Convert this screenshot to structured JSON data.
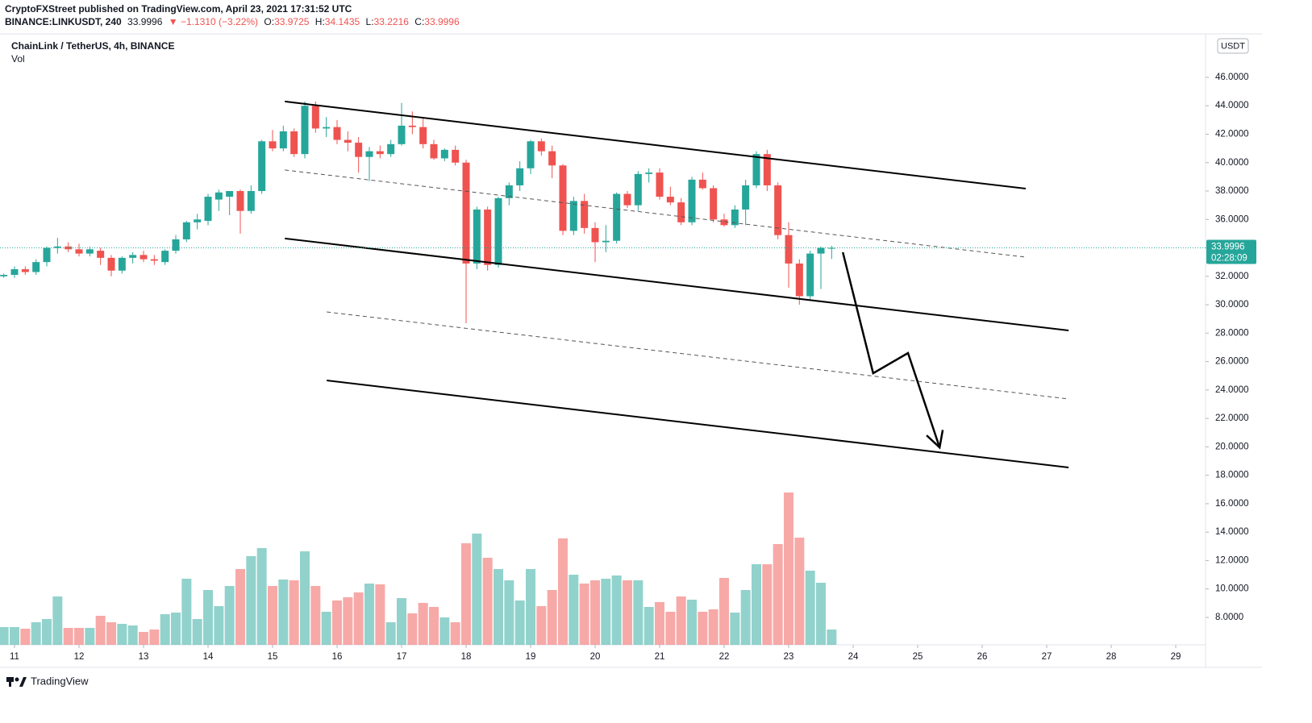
{
  "publisher": "CryptoFXStreet published on TradingView.com, April 23, 2021 17:31:52 UTC",
  "symbol": "BINANCE:LINKUSDT, 240",
  "change": "▼ −1.1310 (−3.22%)",
  "ohlc_labels": [
    "O:",
    "H:",
    "L:",
    "C:"
  ],
  "footer": "TradingView",
  "chart_data": {
    "type": "candlestick",
    "title": "ChainLink / TetherUS, 4h, BINANCE",
    "volume_label": "Vol",
    "currency": "USDT",
    "countdown": "02:28:09",
    "up_color": "#26a69a",
    "down_color": "#ef5350",
    "xlim": [
      10.775,
      29.4625
    ],
    "xticks": [
      11,
      12,
      13,
      14,
      15,
      16,
      17,
      18,
      19,
      20,
      21,
      22,
      23,
      24,
      25,
      26,
      27,
      28,
      29
    ],
    "ylim": [
      6.07,
      49.06
    ],
    "yticks": [
      {
        "value": 8,
        "label": "8.0000"
      },
      {
        "value": 10,
        "label": "10.0000"
      },
      {
        "value": 12,
        "label": "12.0000"
      },
      {
        "value": 14,
        "label": "14.0000"
      },
      {
        "value": 16,
        "label": "16.0000"
      },
      {
        "value": 18,
        "label": "18.0000"
      },
      {
        "value": 20,
        "label": "20.0000"
      },
      {
        "value": 22,
        "label": "22.0000"
      },
      {
        "value": 24,
        "label": "24.0000"
      },
      {
        "value": 26,
        "label": "26.0000"
      },
      {
        "value": 28,
        "label": "28.0000"
      },
      {
        "value": 30,
        "label": "30.0000"
      },
      {
        "value": 32,
        "label": "32.0000"
      },
      {
        "value": 34,
        "label": "34.0000"
      },
      {
        "value": 36,
        "label": "36.0000"
      },
      {
        "value": 38,
        "label": "38.0000"
      },
      {
        "value": 40,
        "label": "40.0000"
      },
      {
        "value": 42,
        "label": "42.0000"
      },
      {
        "value": 44,
        "label": "44.0000"
      },
      {
        "value": 46,
        "label": "46.0000"
      }
    ],
    "volume_ylim": [
      0,
      758
    ],
    "grid": false,
    "x": [
      10.8333,
      11,
      11.1667,
      11.3333,
      11.5,
      11.6667,
      11.8333,
      12,
      12.1667,
      12.3333,
      12.5,
      12.6667,
      12.8333,
      13,
      13.1667,
      13.3333,
      13.5,
      13.6667,
      13.8333,
      14,
      14.1667,
      14.3333,
      14.5,
      14.6667,
      14.8333,
      15,
      15.1667,
      15.3333,
      15.5,
      15.6667,
      15.8333,
      16,
      16.1667,
      16.3333,
      16.5,
      16.6667,
      16.8333,
      17,
      17.1667,
      17.3333,
      17.5,
      17.6667,
      17.8333,
      18,
      18.1667,
      18.3333,
      18.5,
      18.6667,
      18.8333,
      19,
      19.1667,
      19.3333,
      19.5,
      19.6667,
      19.8333,
      20,
      20.1667,
      20.3333,
      20.5,
      20.6667,
      20.8333,
      21,
      21.1667,
      21.3333,
      21.5,
      21.6667,
      21.8333,
      22,
      22.1667,
      22.3333,
      22.5,
      22.6667,
      22.8333,
      23,
      23.1667,
      23.3333,
      23.5,
      23.6667
    ],
    "open": [
      32.0,
      32.1,
      32.5,
      32.3,
      33.0,
      34.0,
      34.1,
      33.9,
      33.6,
      33.8,
      33.3,
      32.4,
      33.3,
      33.5,
      33.2,
      33.0,
      33.8,
      34.6,
      35.8,
      35.9,
      37.4,
      37.6,
      38.0,
      36.6,
      38.0,
      41.5,
      41.0,
      42.2,
      40.6,
      44.0,
      42.4,
      42.5,
      41.6,
      41.4,
      40.4,
      40.8,
      40.6,
      41.3,
      42.6,
      42.5,
      41.3,
      40.3,
      40.9,
      40.0,
      32.9,
      36.7,
      32.8,
      37.5,
      38.4,
      39.6,
      41.5,
      40.8,
      39.8,
      35.2,
      37.3,
      35.4,
      34.4,
      34.5,
      37.8,
      37.0,
      39.2,
      39.3,
      37.6,
      37.2,
      35.8,
      38.8,
      38.2,
      36.0,
      35.6,
      36.7,
      38.4,
      40.6,
      38.4,
      34.9,
      32.9,
      30.6,
      33.6,
      33.9725
    ],
    "high": [
      32.2,
      32.7,
      32.7,
      33.2,
      34.1,
      34.7,
      34.4,
      34.3,
      34.1,
      34.0,
      33.5,
      33.4,
      33.7,
      33.8,
      33.5,
      33.9,
      34.9,
      35.9,
      36.4,
      37.8,
      38.1,
      38.0,
      38.1,
      38.4,
      41.6,
      42.3,
      42.6,
      42.4,
      44.3,
      44.3,
      43.2,
      43.0,
      42.2,
      41.8,
      41.1,
      41.2,
      41.6,
      44.2,
      43.6,
      43.2,
      41.6,
      41.0,
      41.2,
      40.2,
      36.9,
      36.9,
      37.6,
      38.6,
      40.1,
      41.6,
      41.7,
      41.2,
      39.9,
      37.6,
      37.8,
      35.8,
      35.6,
      37.9,
      38.0,
      39.4,
      39.6,
      39.6,
      38.3,
      37.5,
      39.0,
      39.3,
      38.4,
      36.4,
      37.0,
      38.8,
      40.8,
      40.9,
      38.6,
      35.8,
      33.2,
      33.8,
      34.1,
      34.1435
    ],
    "low": [
      31.9,
      31.9,
      32.1,
      32.1,
      32.7,
      33.6,
      33.7,
      33.4,
      33.4,
      32.8,
      32.0,
      32.2,
      32.9,
      33.0,
      32.8,
      32.8,
      33.6,
      34.4,
      35.3,
      35.6,
      36.6,
      36.3,
      35.0,
      36.4,
      37.8,
      40.8,
      40.8,
      40.4,
      40.3,
      42.1,
      41.8,
      41.3,
      40.8,
      39.3,
      38.7,
      40.3,
      40.4,
      41.2,
      42.0,
      41.0,
      40.2,
      40.1,
      39.8,
      28.7,
      32.5,
      32.4,
      32.6,
      37.0,
      38.0,
      39.2,
      40.5,
      38.9,
      34.9,
      34.9,
      35.0,
      33.0,
      33.7,
      34.3,
      36.8,
      36.6,
      38.6,
      37.4,
      37.0,
      35.6,
      35.6,
      38.1,
      35.8,
      35.5,
      35.4,
      35.6,
      38.2,
      38.0,
      34.6,
      31.2,
      30.0,
      30.3,
      31.1,
      33.2216
    ],
    "close": [
      32.1,
      32.5,
      32.3,
      33.0,
      34.0,
      34.1,
      33.9,
      33.6,
      33.9,
      33.3,
      32.4,
      33.3,
      33.5,
      33.2,
      33.1,
      33.8,
      34.6,
      35.8,
      36.0,
      37.6,
      37.9,
      38.0,
      36.6,
      38.0,
      41.5,
      41.0,
      42.2,
      40.6,
      44.0,
      42.4,
      42.5,
      41.6,
      41.4,
      40.4,
      40.8,
      40.6,
      41.3,
      42.6,
      42.5,
      41.3,
      40.3,
      40.9,
      40.0,
      32.9,
      36.7,
      32.8,
      37.5,
      38.4,
      39.6,
      41.5,
      40.8,
      39.8,
      35.2,
      37.3,
      35.4,
      34.4,
      34.5,
      37.8,
      37.0,
      39.2,
      39.3,
      37.6,
      37.2,
      35.8,
      38.8,
      38.2,
      36.0,
      35.6,
      36.7,
      38.4,
      40.6,
      38.4,
      34.9,
      32.9,
      30.6,
      33.6,
      34.0,
      33.9996
    ],
    "volume": [
      22,
      22,
      20,
      28,
      32,
      60,
      21,
      21,
      21,
      36,
      28,
      26,
      24,
      16,
      19,
      38,
      40,
      82,
      32,
      68,
      48,
      73,
      94,
      110,
      120,
      73,
      81,
      80,
      116,
      73,
      41,
      55,
      59,
      65,
      76,
      75,
      28,
      58,
      39,
      52,
      47,
      34,
      28,
      126,
      138,
      108,
      94,
      80,
      55,
      94,
      48,
      68,
      132,
      87,
      76,
      80,
      82,
      86,
      80,
      80,
      47,
      53,
      41,
      60,
      56,
      41,
      44,
      83,
      40,
      68,
      100,
      100,
      125,
      189,
      133,
      92,
      77,
      19
    ],
    "trendlines": [
      {
        "style": "solid",
        "x": [
          15.19,
          26.675
        ],
        "y": [
          44.3,
          38.17
        ]
      },
      {
        "style": "dashed",
        "x": [
          15.19,
          26.675
        ],
        "y": [
          39.48,
          33.35
        ]
      },
      {
        "style": "solid",
        "x": [
          15.19,
          27.34
        ],
        "y": [
          34.66,
          28.19
        ]
      },
      {
        "style": "dashed",
        "x": [
          15.84,
          27.34
        ],
        "y": [
          29.49,
          23.37
        ]
      },
      {
        "style": "solid",
        "x": [
          15.84,
          27.34
        ],
        "y": [
          24.67,
          18.55
        ]
      }
    ],
    "arrow": {
      "x": [
        23.84,
        24.31,
        24.85,
        25.34
      ],
      "y": [
        33.69,
        25.18,
        26.6,
        19.96
      ]
    }
  }
}
